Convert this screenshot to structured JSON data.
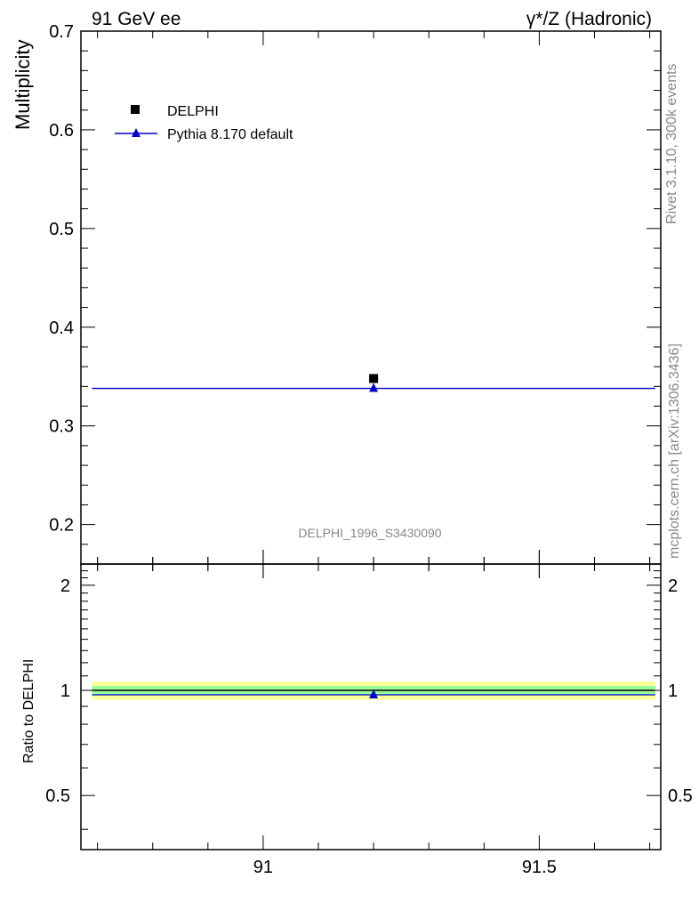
{
  "header": {
    "left": "91 GeV ee",
    "right": "γ*/Z (Hadronic)"
  },
  "side": {
    "rivet": "Rivet 3.1.10,  300k events",
    "source": "mcplots.cern.ch [arXiv:1306.3436]"
  },
  "colors": {
    "data": "#000000",
    "mc": "#0000cc",
    "band_yellow": "#ffff99",
    "band_green": "#99ff99",
    "watermark": "#888888",
    "side_text": "#888888"
  },
  "chart_data": [
    {
      "type": "scatter",
      "ylabel": "Multiplicity",
      "xlim": [
        90.67,
        91.72
      ],
      "ylim": [
        0.16,
        0.7
      ],
      "yticks": [
        0.2,
        0.3,
        0.4,
        0.5,
        0.6,
        0.7
      ],
      "ytick_labels": [
        "0.2",
        "0.3",
        "0.4",
        "0.5",
        "0.6",
        "0.7"
      ],
      "watermark": "DELPHI_1996_S3430090",
      "legend_position": "top-left",
      "series": [
        {
          "name": "DELPHI",
          "marker": "square",
          "x": [
            91.2
          ],
          "y": [
            0.348
          ]
        },
        {
          "name": "Pythia 8.170 default",
          "marker": "triangle",
          "x": [
            91.2
          ],
          "y": [
            0.338
          ],
          "xrange": [
            90.69,
            91.71
          ]
        }
      ]
    },
    {
      "type": "scatter",
      "ylabel": "Ratio to DELPHI",
      "xlim": [
        90.67,
        91.72
      ],
      "ylim": [
        0.35,
        2.3
      ],
      "yticks": [
        0.5,
        1,
        2
      ],
      "ytick_labels": [
        "0.5",
        "1",
        "2"
      ],
      "xticks": [
        91,
        91.5
      ],
      "xtick_labels": [
        "91",
        "91.5"
      ],
      "bands": [
        {
          "color": "yellow",
          "low": 0.94,
          "high": 1.06
        },
        {
          "color": "green",
          "low": 0.97,
          "high": 1.03
        }
      ],
      "series": [
        {
          "name": "Pythia 8.170 default",
          "marker": "triangle",
          "x": [
            91.2
          ],
          "y": [
            0.971
          ],
          "xrange": [
            90.69,
            91.71
          ]
        }
      ]
    }
  ]
}
